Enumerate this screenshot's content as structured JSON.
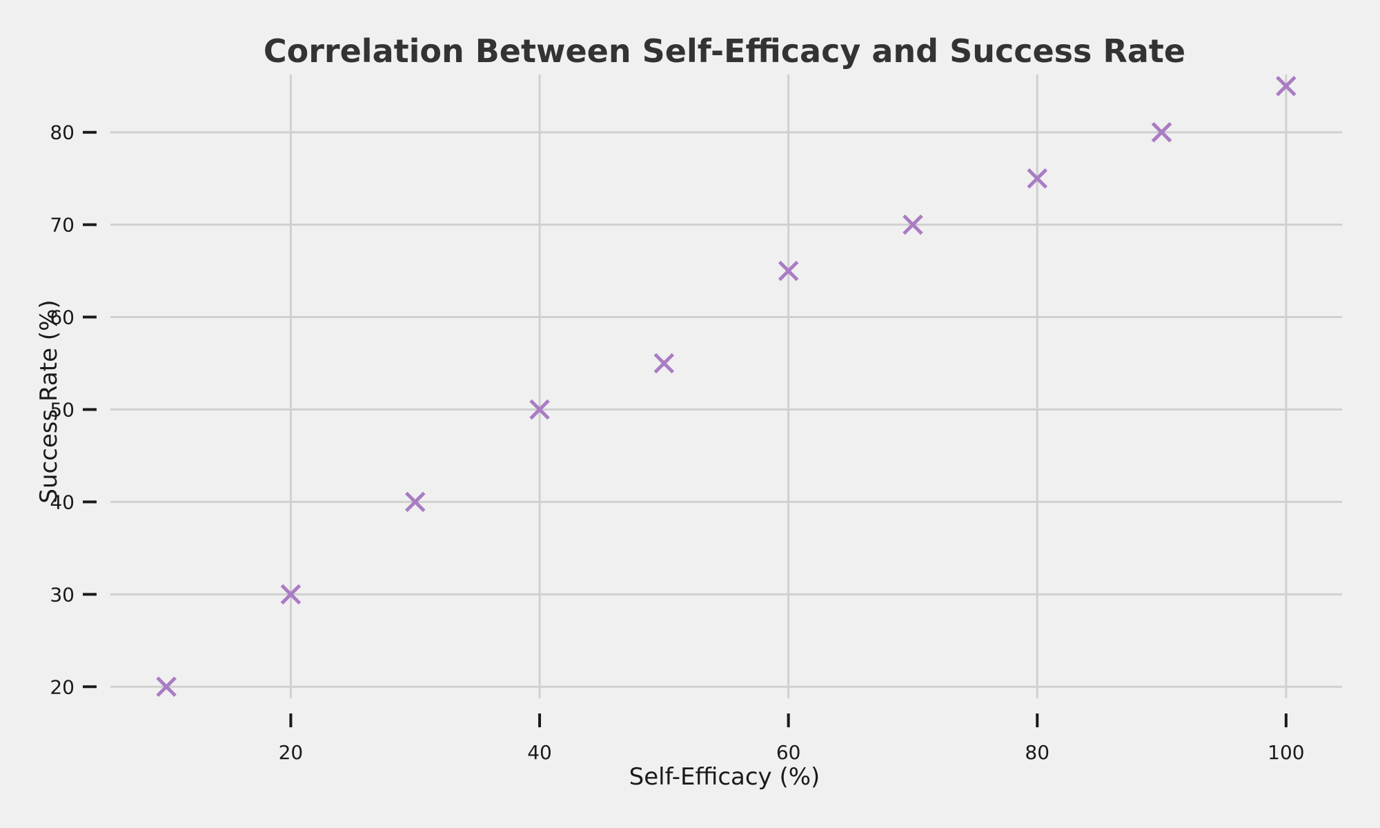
{
  "chart_data": {
    "type": "scatter",
    "title": "Correlation Between Self-Efficacy and Success Rate",
    "xlabel": "Self-Efficacy (%)",
    "ylabel": "Success Rate (%)",
    "x": [
      10,
      20,
      30,
      40,
      50,
      60,
      70,
      80,
      90,
      100
    ],
    "y": [
      20,
      30,
      40,
      50,
      55,
      65,
      70,
      75,
      80,
      85
    ],
    "xlim": [
      5.5,
      104.5
    ],
    "ylim": [
      18.75,
      86.25
    ],
    "xticks": [
      20,
      40,
      60,
      80,
      100
    ],
    "yticks": [
      20,
      30,
      40,
      50,
      60,
      70,
      80
    ],
    "marker": "x",
    "marker_color": "#a97cc3",
    "grid": true,
    "background_color": "#f0f0f0"
  }
}
